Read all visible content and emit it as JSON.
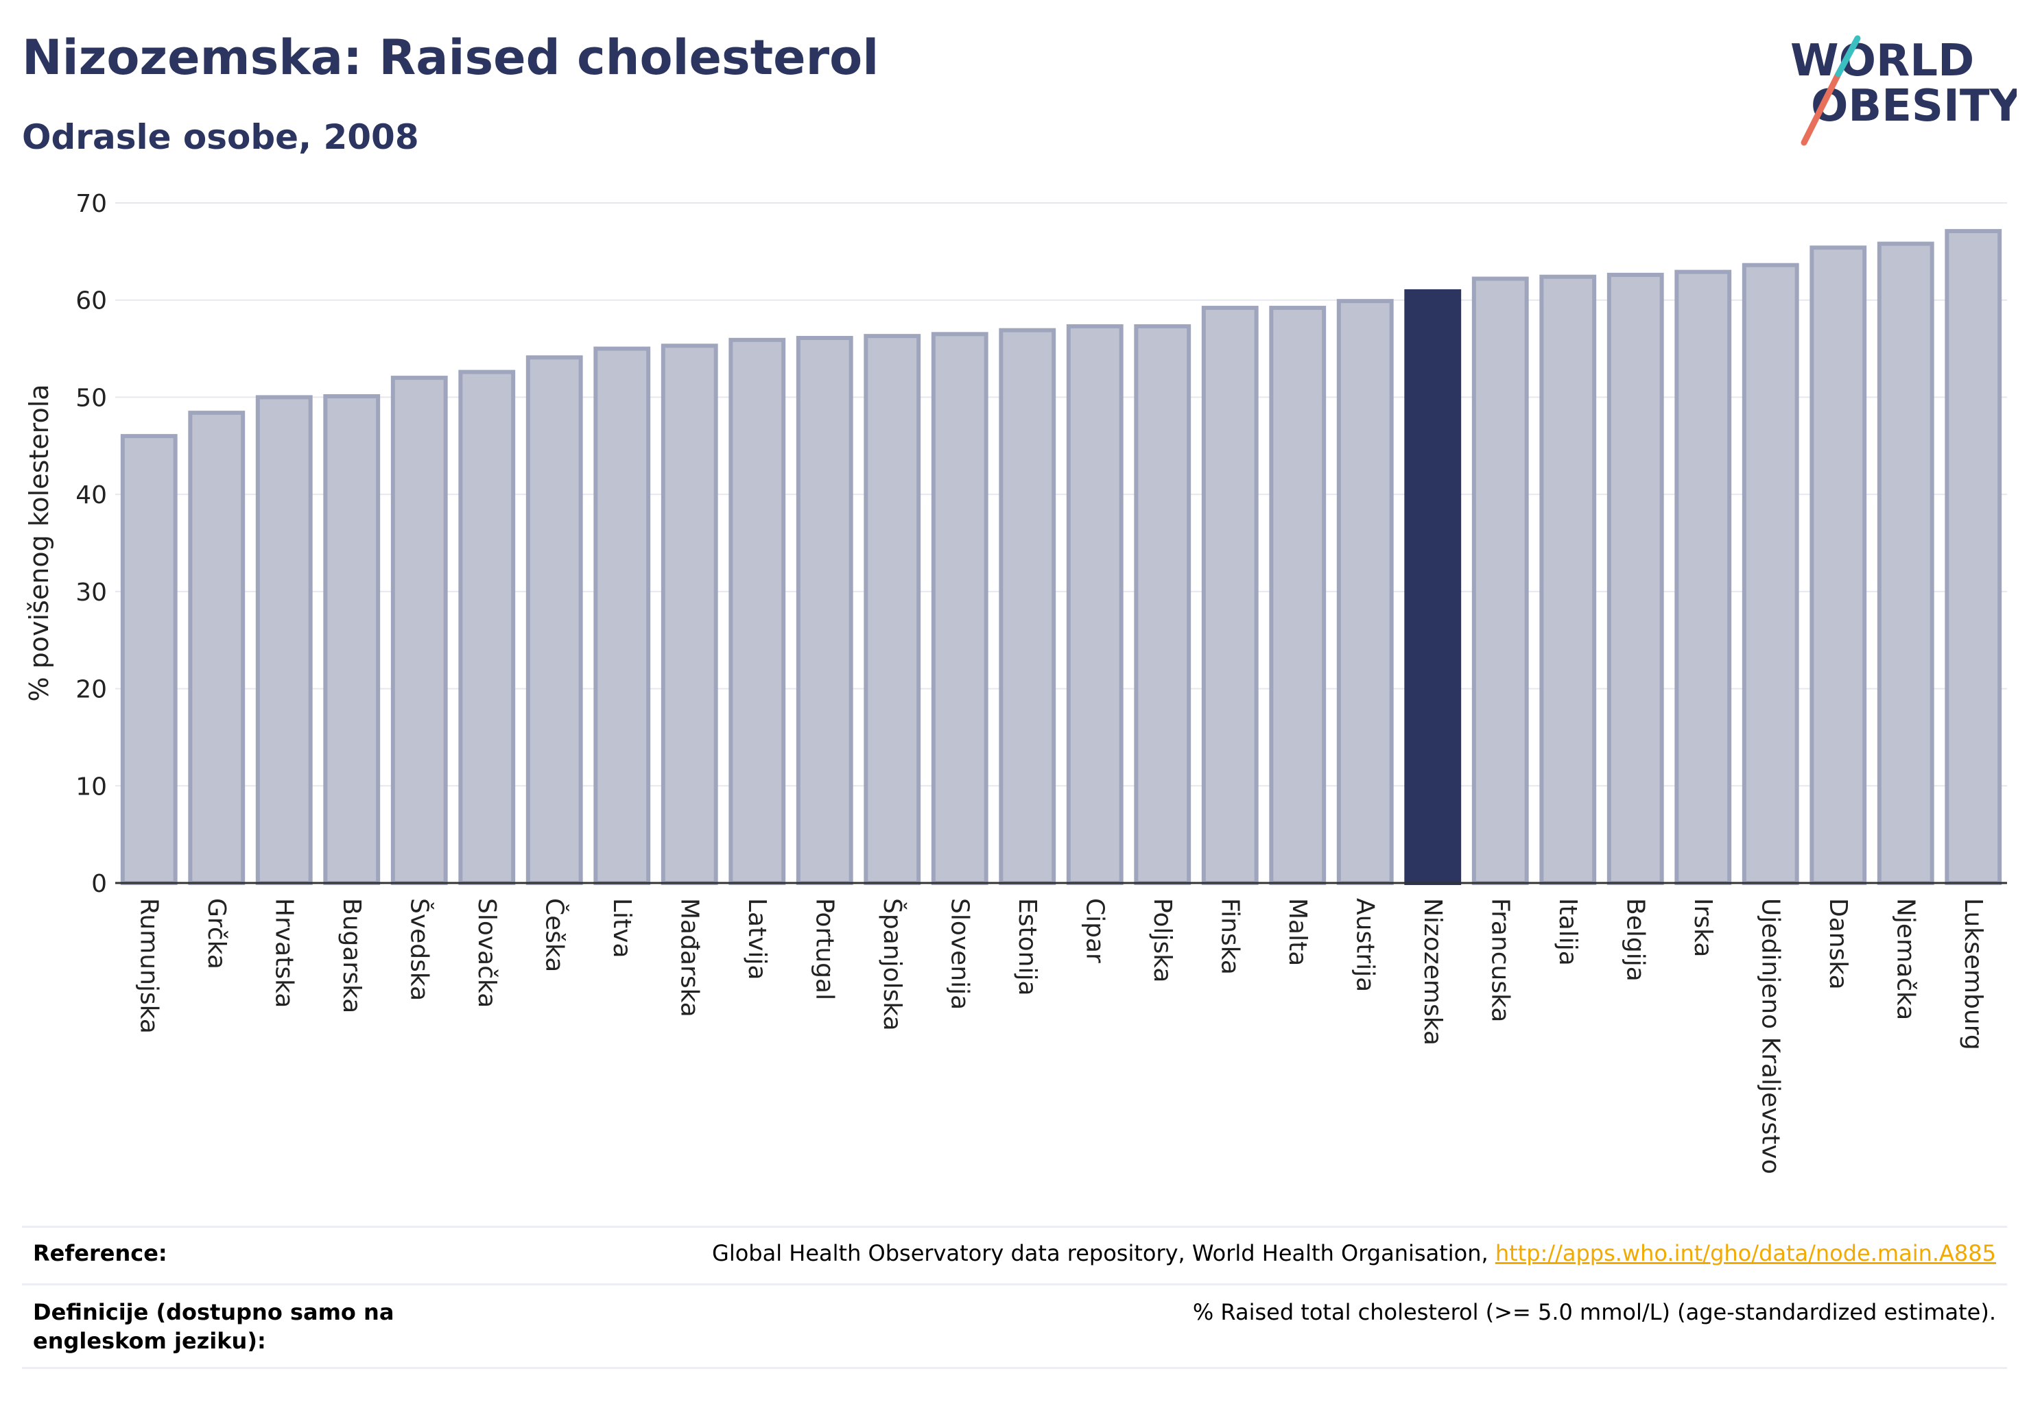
{
  "title": "Nizozemska: Raised cholesterol",
  "subtitle": "Odrasle osobe, 2008",
  "logo": {
    "line1": "WORLD",
    "line2": "OBESITY"
  },
  "colors": {
    "bar": "#bfc3d1",
    "bar_edge": "#9fa5bd",
    "highlight": "#2b3560",
    "grid": "#e6e8ef",
    "text": "#2b3560",
    "link": "#f2a900"
  },
  "chart_data": {
    "type": "bar",
    "categories": [
      "Rumunjska",
      "Grčka",
      "Hrvatska",
      "Bugarska",
      "Švedska",
      "Slovačka",
      "Češka",
      "Litva",
      "Mađarska",
      "Latvija",
      "Portugal",
      "Španjolska",
      "Slovenija",
      "Estonija",
      "Cipar",
      "Poljska",
      "Finska",
      "Malta",
      "Austrija",
      "Nizozemska",
      "Francuska",
      "Italija",
      "Belgija",
      "Irska",
      "Ujedinjeno Kraljevstvo",
      "Danska",
      "Njemačka",
      "Luksemburg"
    ],
    "values": [
      46,
      48.4,
      50,
      50.1,
      52,
      52.6,
      54.1,
      55,
      55.3,
      55.9,
      56.1,
      56.3,
      56.5,
      56.9,
      57.3,
      57.3,
      59.2,
      59.2,
      59.9,
      60.9,
      62.2,
      62.4,
      62.6,
      62.9,
      63.6,
      65.4,
      65.8,
      67.1
    ],
    "highlight": "Nizozemska",
    "ylabel": "% povišenog kolesterola",
    "xlabel": "",
    "ylim": [
      0,
      70
    ],
    "yticks": [
      0,
      10,
      20,
      30,
      40,
      50,
      60,
      70
    ],
    "grid": true
  },
  "footer": {
    "reference_label": "Reference:",
    "reference_text": "Global Health Observatory data repository, World Health Organisation, ",
    "reference_link": "http://apps.who.int/gho/data/node.main.A885",
    "definition_label": "Definicije (dostupno samo na engleskom jeziku):",
    "definition_text": "% Raised total cholesterol (>= 5.0 mmol/L) (age-standardized estimate)."
  }
}
